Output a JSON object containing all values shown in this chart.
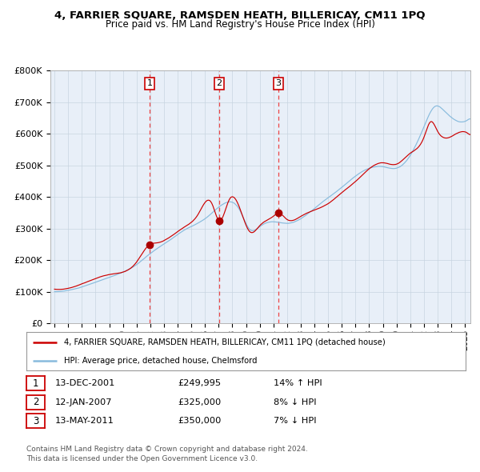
{
  "title": "4, FARRIER SQUARE, RAMSDEN HEATH, BILLERICAY, CM11 1PQ",
  "subtitle": "Price paid vs. HM Land Registry's House Price Index (HPI)",
  "x_start": 1994.7,
  "x_end": 2025.4,
  "y_min": 0,
  "y_max": 800000,
  "yticks": [
    0,
    100000,
    200000,
    300000,
    400000,
    500000,
    600000,
    700000,
    800000
  ],
  "ytick_labels": [
    "£0",
    "£100K",
    "£200K",
    "£300K",
    "£400K",
    "£500K",
    "£600K",
    "£700K",
    "£800K"
  ],
  "xtick_years": [
    1995,
    1996,
    1997,
    1998,
    1999,
    2000,
    2001,
    2002,
    2003,
    2004,
    2005,
    2006,
    2007,
    2008,
    2009,
    2010,
    2011,
    2012,
    2013,
    2014,
    2015,
    2016,
    2017,
    2018,
    2019,
    2020,
    2021,
    2022,
    2023,
    2024,
    2025
  ],
  "sale_dates": [
    2001.95,
    2007.04,
    2011.37
  ],
  "sale_prices": [
    249995,
    325000,
    350000
  ],
  "sale_labels": [
    "1",
    "2",
    "3"
  ],
  "vline_color": "#ee3333",
  "sale_marker_color": "#aa0000",
  "hpi_line_color": "#88bbdd",
  "price_line_color": "#cc0000",
  "bg_color": "#e8eff8",
  "grid_color": "#c8d4e0",
  "legend_line1": "4, FARRIER SQUARE, RAMSDEN HEATH, BILLERICAY, CM11 1PQ (detached house)",
  "legend_line2": "HPI: Average price, detached house, Chelmsford",
  "table_rows": [
    [
      "1",
      "13-DEC-2001",
      "£249,995",
      "14% ↑ HPI"
    ],
    [
      "2",
      "12-JAN-2007",
      "£325,000",
      "8% ↓ HPI"
    ],
    [
      "3",
      "13-MAY-2011",
      "£350,000",
      "7% ↓ HPI"
    ]
  ],
  "footnote1": "Contains HM Land Registry data © Crown copyright and database right 2024.",
  "footnote2": "This data is licensed under the Open Government Licence v3.0."
}
